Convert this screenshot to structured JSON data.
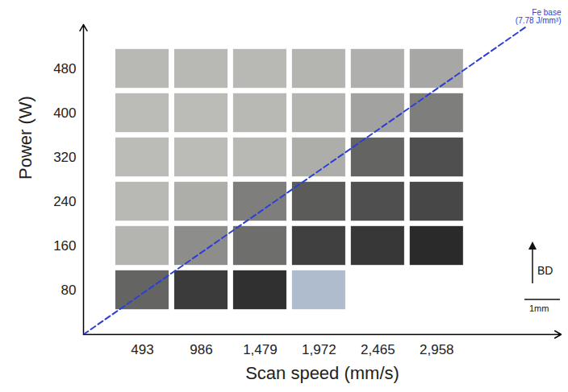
{
  "chart_data": {
    "type": "heatmap",
    "x_label": "Scan speed (mm/s)",
    "y_label": "Power (W)",
    "xlim": [
      0,
      4000
    ],
    "ylim": [
      0,
      560
    ],
    "xticks": [
      493,
      986,
      {
        "value": 1479,
        "label": "1,479"
      },
      {
        "value": 1972,
        "label": "1,972"
      },
      {
        "value": 2465,
        "label": "2,465"
      },
      {
        "value": 2958,
        "label": "2,958"
      }
    ],
    "yticks": [
      80,
      160,
      240,
      320,
      400,
      480
    ],
    "cells": [
      {
        "x": 493,
        "y": 480,
        "value": 0.3
      },
      {
        "x": 986,
        "y": 480,
        "value": 0.3
      },
      {
        "x": 1479,
        "y": 480,
        "value": 0.3
      },
      {
        "x": 1972,
        "y": 480,
        "value": 0.5
      },
      {
        "x": 2465,
        "y": 480,
        "value": 0.8
      },
      {
        "x": 2958,
        "y": 480,
        "value": 1.5
      },
      {
        "x": 493,
        "y": 400,
        "value": 0.2
      },
      {
        "x": 986,
        "y": 400,
        "value": 0.2
      },
      {
        "x": 1479,
        "y": 400,
        "value": 0.3
      },
      {
        "x": 1972,
        "y": 400,
        "value": 0.5
      },
      {
        "x": 2465,
        "y": 400,
        "value": 2
      },
      {
        "x": 2958,
        "y": 400,
        "value": 8
      },
      {
        "x": 493,
        "y": 320,
        "value": 0.2
      },
      {
        "x": 986,
        "y": 320,
        "value": 0.2
      },
      {
        "x": 1479,
        "y": 320,
        "value": 0.3
      },
      {
        "x": 1972,
        "y": 320,
        "value": 1
      },
      {
        "x": 2465,
        "y": 320,
        "value": 15
      },
      {
        "x": 2958,
        "y": 320,
        "value": 22
      },
      {
        "x": 493,
        "y": 240,
        "value": 0.3
      },
      {
        "x": 986,
        "y": 240,
        "value": 1
      },
      {
        "x": 1479,
        "y": 240,
        "value": 8
      },
      {
        "x": 1972,
        "y": 240,
        "value": 18
      },
      {
        "x": 2465,
        "y": 240,
        "value": 22
      },
      {
        "x": 2958,
        "y": 240,
        "value": 25
      },
      {
        "x": 493,
        "y": 160,
        "value": 0.5
      },
      {
        "x": 986,
        "y": 160,
        "value": 5
      },
      {
        "x": 1479,
        "y": 160,
        "value": 12
      },
      {
        "x": 1972,
        "y": 160,
        "value": 28
      },
      {
        "x": 2465,
        "y": 160,
        "value": 32
      },
      {
        "x": 2958,
        "y": 160,
        "value": 38
      },
      {
        "x": 493,
        "y": 80,
        "value": 15
      },
      {
        "x": 986,
        "y": 80,
        "value": 30
      },
      {
        "x": 1479,
        "y": 80,
        "value": 35
      },
      {
        "x": 1972,
        "y": 80,
        "value": null
      }
    ],
    "series": [
      {
        "name": "Fe base (7.78 J/mm³)",
        "type": "line",
        "color": "#2b3fd6",
        "line_style": "dashed",
        "x": [
          0,
          3700
        ],
        "y": [
          0,
          555
        ]
      }
    ],
    "annotations": [
      "BD",
      "1mm"
    ],
    "grid": false
  }
}
